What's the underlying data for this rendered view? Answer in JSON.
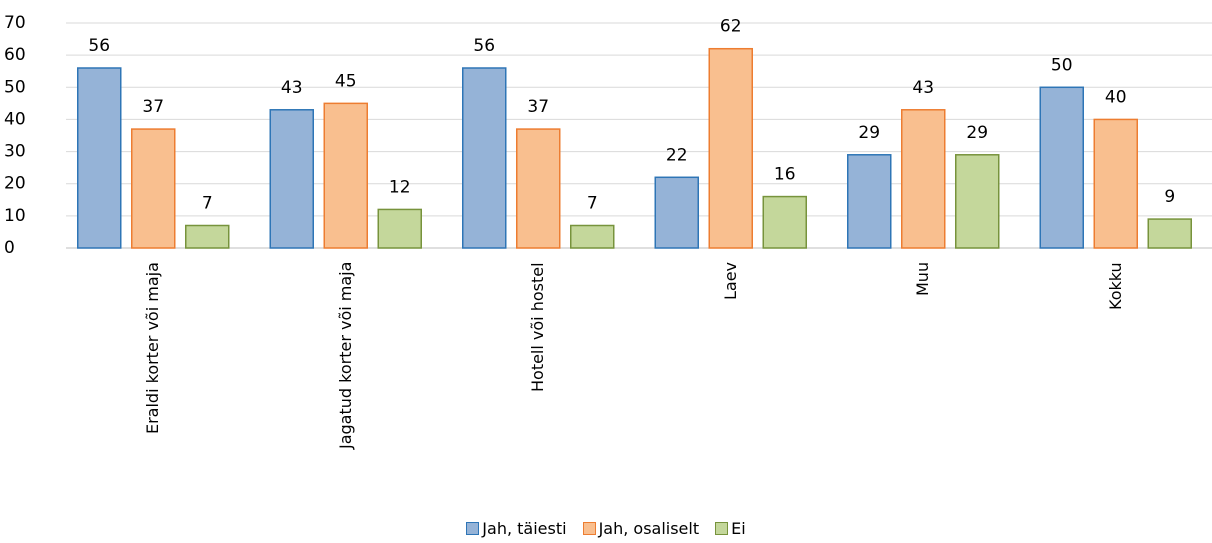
{
  "chart_data": {
    "type": "bar",
    "categories": [
      "Eraldi korter või maja",
      "Jagatud korter või maja",
      "Hotell või hostel",
      "Laev",
      "Muu",
      "Kokku"
    ],
    "series": [
      {
        "name": "Jah, täiesti",
        "color": "#95b3d7",
        "stroke": "#2e75b6",
        "values": [
          56,
          43,
          56,
          22,
          29,
          50
        ]
      },
      {
        "name": "Jah, osaliselt",
        "color": "#f9bf8f",
        "stroke": "#ed7d31",
        "values": [
          37,
          45,
          37,
          62,
          43,
          40
        ]
      },
      {
        "name": "Ei",
        "color": "#c4d79b",
        "stroke": "#77933c",
        "values": [
          7,
          12,
          7,
          16,
          29,
          9
        ]
      }
    ],
    "ylim": [
      0,
      70
    ],
    "yticks": [
      0,
      10,
      20,
      30,
      40,
      50,
      60,
      70
    ],
    "grid": true,
    "legend": "bottom"
  }
}
